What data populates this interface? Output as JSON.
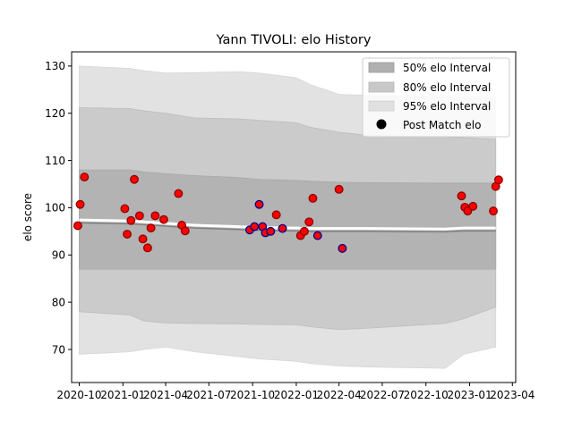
{
  "chart_data": {
    "type": "scatter",
    "title": "Yann TIVOLI: elo History",
    "xlabel": "",
    "ylabel": "elo score",
    "xlim": [
      "2020-09-15",
      "2023-04-08"
    ],
    "ylim": [
      63,
      133
    ],
    "x_ticks": [
      "2020-10",
      "2021-01",
      "2021-04",
      "2021-07",
      "2021-10",
      "2022-01",
      "2022-04",
      "2022-07",
      "2022-10",
      "2023-01",
      "2023-04"
    ],
    "y_ticks": [
      70,
      80,
      90,
      100,
      110,
      120,
      130
    ],
    "grid": false,
    "legend_position": "top-right",
    "legend": [
      {
        "label": "50% elo Interval",
        "color": "#b0b0b0",
        "kind": "patch"
      },
      {
        "label": "80% elo Interval",
        "color": "#c8c8c8",
        "kind": "patch"
      },
      {
        "label": "95% elo Interval",
        "color": "#e0e0e0",
        "kind": "patch"
      },
      {
        "label": "Post Match elo",
        "color": "#000000",
        "kind": "marker"
      }
    ],
    "colors": {
      "band50": "#b3b3b3",
      "band80": "#cbcbcb",
      "band95": "#e2e2e2",
      "mean_line": "#808080",
      "marker_edge_win": "#8b0000",
      "marker_edge_loss": "#00008b",
      "marker_fill": "#ff0000"
    },
    "bands": {
      "dates": [
        "2020-10-01",
        "2021-01-15",
        "2021-02-15",
        "2021-04-01",
        "2021-06-01",
        "2021-09-01",
        "2021-10-15",
        "2022-01-01",
        "2022-02-01",
        "2022-04-01",
        "2022-06-01",
        "2022-11-10",
        "2022-12-20",
        "2023-02-25"
      ],
      "mean": [
        96.8,
        96.6,
        96.4,
        96.1,
        95.7,
        95.4,
        95.2,
        95.1,
        95.0,
        95.0,
        95.0,
        94.9,
        95.1,
        95.1
      ],
      "lower50": [
        87.0,
        87.0,
        87.0,
        87.0,
        87.0,
        87.0,
        87.0,
        87.0,
        87.0,
        87.0,
        87.0,
        87.0,
        87.0,
        87.0
      ],
      "upper50": [
        108.0,
        108.0,
        107.6,
        107.2,
        106.8,
        106.4,
        106.0,
        105.8,
        105.6,
        105.4,
        105.3,
        105.2,
        105.2,
        105.2
      ],
      "lower80": [
        78.0,
        77.3,
        76.0,
        75.6,
        75.5,
        75.4,
        75.3,
        75.2,
        74.8,
        74.2,
        74.5,
        75.5,
        76.5,
        79.0
      ],
      "upper80": [
        121.2,
        121.0,
        120.5,
        120.0,
        119.0,
        118.8,
        118.5,
        118.0,
        117.0,
        116.0,
        115.3,
        115.0,
        114.8,
        114.5
      ],
      "lower95": [
        69.0,
        69.5,
        70.0,
        70.5,
        69.5,
        68.5,
        68.0,
        67.5,
        67.0,
        66.5,
        66.3,
        66.0,
        69.0,
        70.5
      ],
      "upper95": [
        130.0,
        129.5,
        129.0,
        128.5,
        128.6,
        128.8,
        128.5,
        127.5,
        126.0,
        124.0,
        123.8,
        123.5,
        123.5,
        123.5
      ]
    },
    "points": [
      {
        "date": "2020-09-28",
        "elo": 96.2,
        "result": "win"
      },
      {
        "date": "2020-10-03",
        "elo": 100.7,
        "result": "win"
      },
      {
        "date": "2020-10-12",
        "elo": 106.5,
        "result": "win"
      },
      {
        "date": "2021-01-05",
        "elo": 99.8,
        "result": "win"
      },
      {
        "date": "2021-01-10",
        "elo": 94.4,
        "result": "win"
      },
      {
        "date": "2021-01-18",
        "elo": 97.3,
        "result": "win"
      },
      {
        "date": "2021-01-25",
        "elo": 106.0,
        "result": "win"
      },
      {
        "date": "2021-02-05",
        "elo": 98.3,
        "result": "win"
      },
      {
        "date": "2021-02-12",
        "elo": 93.4,
        "result": "win"
      },
      {
        "date": "2021-02-22",
        "elo": 91.5,
        "result": "win"
      },
      {
        "date": "2021-03-01",
        "elo": 95.7,
        "result": "win"
      },
      {
        "date": "2021-03-10",
        "elo": 98.3,
        "result": "win"
      },
      {
        "date": "2021-03-28",
        "elo": 97.5,
        "result": "win"
      },
      {
        "date": "2021-04-28",
        "elo": 103.0,
        "result": "win"
      },
      {
        "date": "2021-05-05",
        "elo": 96.3,
        "result": "win"
      },
      {
        "date": "2021-05-12",
        "elo": 95.1,
        "result": "win"
      },
      {
        "date": "2021-09-25",
        "elo": 95.3,
        "result": "loss"
      },
      {
        "date": "2021-10-05",
        "elo": 96.0,
        "result": "loss"
      },
      {
        "date": "2021-10-15",
        "elo": 100.7,
        "result": "loss"
      },
      {
        "date": "2021-10-22",
        "elo": 96.0,
        "result": "loss"
      },
      {
        "date": "2021-10-28",
        "elo": 94.7,
        "result": "loss"
      },
      {
        "date": "2021-11-08",
        "elo": 95.0,
        "result": "loss"
      },
      {
        "date": "2021-11-20",
        "elo": 98.5,
        "result": "win"
      },
      {
        "date": "2021-12-03",
        "elo": 95.6,
        "result": "loss"
      },
      {
        "date": "2022-01-10",
        "elo": 94.1,
        "result": "win"
      },
      {
        "date": "2022-01-18",
        "elo": 95.0,
        "result": "win"
      },
      {
        "date": "2022-01-28",
        "elo": 97.0,
        "result": "win"
      },
      {
        "date": "2022-02-05",
        "elo": 102.0,
        "result": "win"
      },
      {
        "date": "2022-02-15",
        "elo": 94.1,
        "result": "loss"
      },
      {
        "date": "2022-04-01",
        "elo": 103.9,
        "result": "win"
      },
      {
        "date": "2022-04-08",
        "elo": 91.4,
        "result": "loss"
      },
      {
        "date": "2022-12-15",
        "elo": 102.5,
        "result": "win"
      },
      {
        "date": "2022-12-22",
        "elo": 100.1,
        "result": "win"
      },
      {
        "date": "2022-12-28",
        "elo": 99.3,
        "result": "win"
      },
      {
        "date": "2023-01-08",
        "elo": 100.3,
        "result": "win"
      },
      {
        "date": "2023-02-20",
        "elo": 99.3,
        "result": "win"
      },
      {
        "date": "2023-02-25",
        "elo": 104.5,
        "result": "win"
      },
      {
        "date": "2023-03-03",
        "elo": 105.9,
        "result": "win"
      }
    ]
  }
}
